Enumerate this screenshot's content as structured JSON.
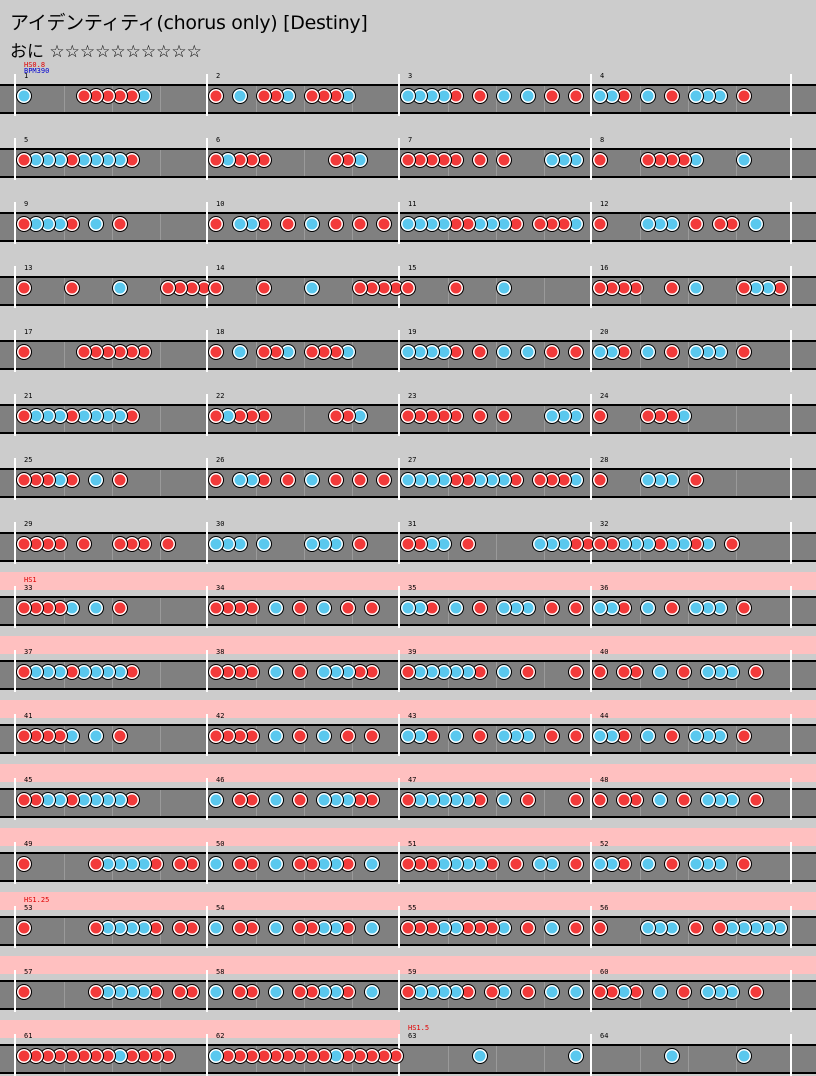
{
  "header": {
    "title": "アイデンティティ(chorus only) [Destiny]",
    "difficulty": "おに ☆☆☆☆☆☆☆☆☆☆"
  },
  "colors": {
    "don": "#f23a3a",
    "ka": "#5ac8ee",
    "lane": "#808080",
    "hs_band": "#ffc0c0",
    "background": "#cccccc"
  },
  "markers": {
    "hs_initial": "HS0.8",
    "bpm": "BPM390",
    "hs_row9": "HS1",
    "hs_row14": "HS1.25",
    "hs_row17": "HS1.5"
  },
  "note_legend": {
    "d": "don (red)",
    "k": "ka (blue)",
    "-": "rest"
  },
  "chart_data": {
    "type": "table",
    "measures_per_row": 4,
    "positions_per_measure": 16,
    "measures": [
      {
        "n": "1",
        "notes": "k----dddddk-----"
      },
      {
        "n": "2",
        "notes": "d-k-ddk-dddk----"
      },
      {
        "n": "3",
        "notes": "kkkkd-d-k-k-d-d-"
      },
      {
        "n": "4",
        "notes": "kkd-k-d-kkk-d---"
      },
      {
        "n": "5",
        "notes": "dkkkdkkkkd------"
      },
      {
        "n": "6",
        "notes": "dkddd-----ddk---"
      },
      {
        "n": "7",
        "notes": "ddddd-d-d---kkk-"
      },
      {
        "n": "8",
        "notes": "d---ddddk---k---"
      },
      {
        "n": "9",
        "notes": "dkkkd-k-d-------"
      },
      {
        "n": "10",
        "notes": "d-kkd-d-k-d-d-d-"
      },
      {
        "n": "11",
        "notes": "kkkkddkkkd-dddk-"
      },
      {
        "n": "12",
        "notes": "d---kkk-d-dd-k--"
      },
      {
        "n": "13",
        "notes": "d---d---k---dddd"
      },
      {
        "n": "14",
        "notes": "d---d---k---dddd"
      },
      {
        "n": "15",
        "notes": "d---d---k-------"
      },
      {
        "n": "16",
        "notes": "dddd--d-k---dkkd"
      },
      {
        "n": "17",
        "notes": "d----dddddd-----"
      },
      {
        "n": "18",
        "notes": "d-k-ddk-dddk----"
      },
      {
        "n": "19",
        "notes": "kkkkd-d-k-k-d-d-"
      },
      {
        "n": "20",
        "notes": "kkd-k-d-kkk-d---"
      },
      {
        "n": "21",
        "notes": "dkkkdkkkkd------"
      },
      {
        "n": "22",
        "notes": "dkddd-----ddk---"
      },
      {
        "n": "23",
        "notes": "ddddd-d-d---kkk-"
      },
      {
        "n": "24",
        "notes": "d---dddk--------"
      },
      {
        "n": "25",
        "notes": "dddkd-k-d-------"
      },
      {
        "n": "26",
        "notes": "d-kkd-d-k-d-d-d-"
      },
      {
        "n": "27",
        "notes": "kkkkddkkkd-dddk-"
      },
      {
        "n": "28",
        "notes": "d---kkk-d-------"
      },
      {
        "n": "29",
        "notes": "dddd-d--ddd-d---"
      },
      {
        "n": "30",
        "notes": "kkk-k---kkk-d---"
      },
      {
        "n": "31",
        "notes": "ddkk-d-----kkkdd"
      },
      {
        "n": "32",
        "notes": "ddkkkdkkdk-d----"
      },
      {
        "n": "33",
        "notes": "ddddk-k-d-------"
      },
      {
        "n": "34",
        "notes": "dddd-k-d-k-d-d--"
      },
      {
        "n": "35",
        "notes": "kkd-k-d-kkk-d-d-"
      },
      {
        "n": "36",
        "notes": "kkd-k-d-kkk-d---"
      },
      {
        "n": "37",
        "notes": "dkkkdkkkkd------"
      },
      {
        "n": "38",
        "notes": "dddd-k-d-kkkdd--"
      },
      {
        "n": "39",
        "notes": "dkkkkkd-k-d---d-"
      },
      {
        "n": "40",
        "notes": "d-dd-k-d-kkk-d--"
      },
      {
        "n": "41",
        "notes": "ddddk-k-d-------"
      },
      {
        "n": "42",
        "notes": "dddd-k-d-k-d-d--"
      },
      {
        "n": "43",
        "notes": "kkd-k-d-kkk-d-d-"
      },
      {
        "n": "44",
        "notes": "kkd-k-d-kkk-d---"
      },
      {
        "n": "45",
        "notes": "ddkkdkkkkd------"
      },
      {
        "n": "46",
        "notes": "k-dd-k-d-kkkdd--"
      },
      {
        "n": "47",
        "notes": "dkkkkkd-k-d---d-"
      },
      {
        "n": "48",
        "notes": "d-dd-k-d-kkk-d--"
      },
      {
        "n": "49",
        "notes": "d-----dkkkkd-dd-"
      },
      {
        "n": "50",
        "notes": "k-dd-k-ddkkd-k--"
      },
      {
        "n": "51",
        "notes": "dddkkkkd-d-kk-d-"
      },
      {
        "n": "52",
        "notes": "kkd-k-d-kkk-d---"
      },
      {
        "n": "53",
        "notes": "d-----dkkkkd-dd-"
      },
      {
        "n": "54",
        "notes": "k-dd-k-ddkkd-k--"
      },
      {
        "n": "55",
        "notes": "dddkkdddk-d-k-d-"
      },
      {
        "n": "56",
        "notes": "d---kkk-d-dkkkkk"
      },
      {
        "n": "57",
        "notes": "d-----dkkkkd-dd-"
      },
      {
        "n": "58",
        "notes": "k-dd-k-ddkkd-k--"
      },
      {
        "n": "59",
        "notes": "dkkkkd-dk-d-k-k-"
      },
      {
        "n": "60",
        "notes": "ddkd-k-d-kkk-d--"
      },
      {
        "n": "61",
        "notes": "ddddddddkdddd---"
      },
      {
        "n": "62",
        "notes": "kdddddddddkddddd"
      },
      {
        "n": "63",
        "notes": "------k-------k-"
      },
      {
        "n": "64",
        "notes": "------k-----k---"
      }
    ]
  }
}
